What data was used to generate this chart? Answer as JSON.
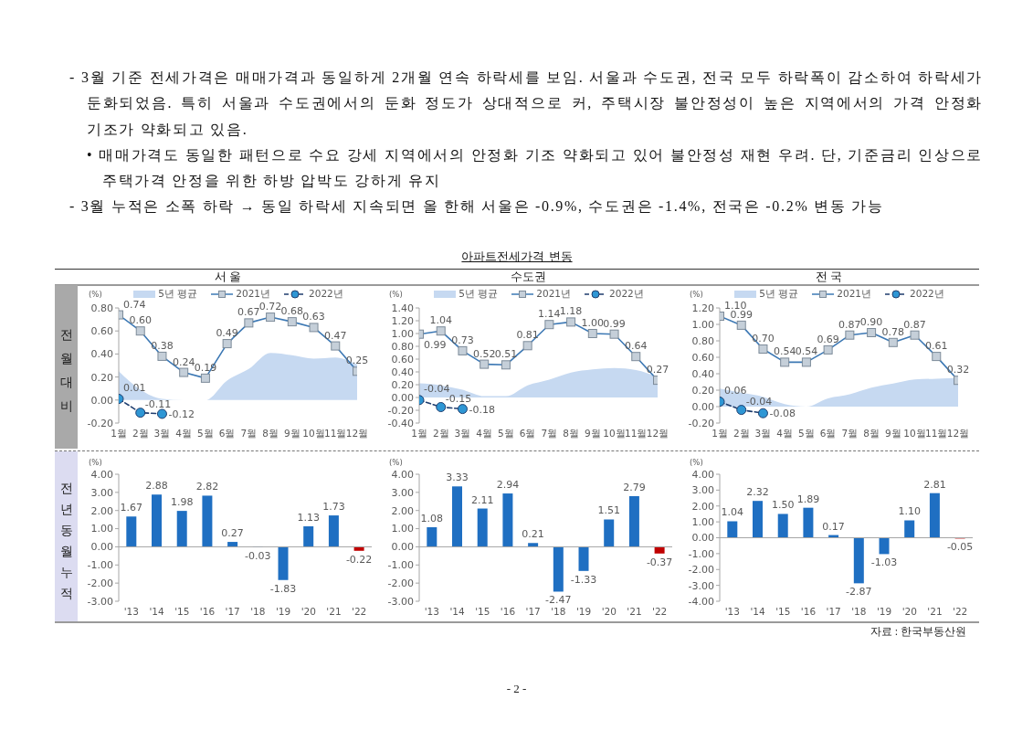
{
  "chart_data": [
    {
      "type": "line",
      "title": "서 울",
      "ylabel": "(%)",
      "annotations": [
        "- 3월 기준 전세가격은 매매가격과 동일하게 2개월 연속 하락세를 보임. 서울과 수도권, 전국 모두 하락폭이 감소하여 하락세가 둔화되었음. 특히 서울과 수도권에서의 둔화 정도가 상대적으로 커, 주택시장 불안정성이 높은 지역에서의 가격 안정화 기조가 약화되고 있음.",
        "• 매매가격도 동일한 패턴으로 수요 강세 지역에서의 안정화 기조 약화되고 있어 불안정성 재현 우려. 단, 기준금리 인상으로 주택가격 안정을 위한 하방 압박도 강하게 유지",
        "- 3월 누적은 소폭 하락 → 동일 하락세 지속되면 올 한해 서울은 -0.9%, 수도권은 -1.4%, 전국은 -0.2% 변동 가능",
        "아파트전세가격 변동",
        "전월대비"
      ],
      "categories": [
        "1월",
        "2월",
        "3월",
        "4월",
        "5월",
        "6월",
        "7월",
        "8월",
        "9월",
        "10월",
        "11월",
        "12월"
      ],
      "series": [
        {
          "name": "5년 평균",
          "type": "area",
          "color": "#c6d9f1",
          "values": [
            0.25,
            0.09,
            0.01,
            0,
            0,
            0.17,
            0.27,
            0.41,
            0.39,
            0.36,
            0.37,
            0.31
          ]
        },
        {
          "name": "2021년",
          "type": "line",
          "color": "#3c78b4",
          "marker": "square",
          "line_style": "solid",
          "values": [
            0.74,
            0.6,
            0.38,
            0.24,
            0.19,
            0.49,
            0.67,
            0.72,
            0.68,
            0.63,
            0.47,
            0.25
          ],
          "value_labels": [
            "0.74",
            "0.60",
            "0.38",
            "0.24",
            "0.19",
            "0.49",
            "0.67",
            "0.72",
            "0.68",
            "0.63",
            "0.47",
            "0.25"
          ]
        },
        {
          "name": "2022년",
          "type": "line",
          "color": "#1f3d6e",
          "marker": "circle",
          "line_style": "dashed",
          "values": [
            0.01,
            -0.11,
            -0.12,
            null,
            null,
            null,
            null,
            null,
            null,
            null,
            null,
            null
          ],
          "value_labels": [
            "0.01",
            "-0.11",
            "-0.12",
            null,
            null,
            null,
            null,
            null,
            null,
            null,
            null,
            null
          ]
        }
      ],
      "ylim": [
        -0.2,
        0.8
      ],
      "yticks": [
        {
          "value": -0.2,
          "label": "-0.20"
        },
        {
          "value": 0,
          "label": "0.00"
        },
        {
          "value": 0.2,
          "label": "0.20"
        },
        {
          "value": 0.4,
          "label": "0.40"
        },
        {
          "value": 0.6,
          "label": "0.60"
        },
        {
          "value": 0.8,
          "label": "0.80"
        }
      ],
      "legend": "top"
    },
    {
      "type": "line",
      "title": "수도권",
      "ylabel": "(%)",
      "categories": [
        "1월",
        "2월",
        "3월",
        "4월",
        "5월",
        "6월",
        "7월",
        "8월",
        "9월",
        "10월",
        "11월",
        "12월"
      ],
      "series": [
        {
          "name": "5년 평균",
          "type": "area",
          "color": "#c6d9f1",
          "values": [
            0.22,
            0.19,
            0.12,
            0.02,
            0.02,
            0.19,
            0.28,
            0.39,
            0.44,
            0.46,
            0.43,
            0.32
          ]
        },
        {
          "name": "2021년",
          "type": "line",
          "color": "#3c78b4",
          "marker": "square",
          "line_style": "solid",
          "values": [
            0.99,
            1.04,
            0.73,
            0.52,
            0.51,
            0.81,
            1.14,
            1.18,
            1.0,
            0.99,
            0.64,
            0.27
          ],
          "value_labels": [
            "0.99",
            "1.04",
            "0.73",
            "0.52",
            "0.51",
            "0.81",
            "1.14",
            "1.18",
            "1.00",
            "0.99",
            "0.64",
            "0.27"
          ]
        },
        {
          "name": "2022년",
          "type": "line",
          "color": "#1f3d6e",
          "marker": "circle",
          "line_style": "dashed",
          "values": [
            -0.04,
            -0.15,
            -0.18,
            null,
            null,
            null,
            null,
            null,
            null,
            null,
            null,
            null
          ],
          "value_labels": [
            "-0.04",
            "-0.15",
            "-0.18",
            null,
            null,
            null,
            null,
            null,
            null,
            null,
            null,
            null
          ]
        }
      ],
      "ylim": [
        -0.4,
        1.4
      ],
      "yticks": [
        {
          "value": -0.4,
          "label": "-0.40"
        },
        {
          "value": -0.2,
          "label": "-0.20"
        },
        {
          "value": 0,
          "label": "0.00"
        },
        {
          "value": 0.2,
          "label": "0.20"
        },
        {
          "value": 0.4,
          "label": "0.40"
        },
        {
          "value": 0.6,
          "label": "0.60"
        },
        {
          "value": 0.8,
          "label": "0.80"
        },
        {
          "value": 1.0,
          "label": "1.00"
        },
        {
          "value": 1.2,
          "label": "1.20"
        },
        {
          "value": 1.4,
          "label": "1.40"
        }
      ],
      "legend": "top"
    },
    {
      "type": "line",
      "title": "전 국",
      "ylabel": "(%)",
      "categories": [
        "1월",
        "2월",
        "3월",
        "4월",
        "5월",
        "6월",
        "7월",
        "8월",
        "9월",
        "10월",
        "11월",
        "12월"
      ],
      "series": [
        {
          "name": "5년 평균",
          "type": "area",
          "color": "#c6d9f1",
          "values": [
            0.22,
            0.17,
            0.12,
            0.03,
            0,
            0.1,
            0.15,
            0.23,
            0.28,
            0.33,
            0.34,
            0.35
          ]
        },
        {
          "name": "2021년",
          "type": "line",
          "color": "#3c78b4",
          "marker": "square",
          "line_style": "solid",
          "values": [
            1.1,
            0.99,
            0.7,
            0.54,
            0.54,
            0.69,
            0.87,
            0.9,
            0.78,
            0.87,
            0.61,
            0.32
          ],
          "value_labels": [
            "1.10",
            "0.99",
            "0.70",
            "0.54",
            "0.54",
            "0.69",
            "0.87",
            "0.90",
            "0.78",
            "0.87",
            "0.61",
            "0.32"
          ]
        },
        {
          "name": "2022년",
          "type": "line",
          "color": "#1f3d6e",
          "marker": "circle",
          "line_style": "dashed",
          "values": [
            0.06,
            -0.04,
            -0.08,
            null,
            null,
            null,
            null,
            null,
            null,
            null,
            null,
            null
          ],
          "value_labels": [
            "0.06",
            "-0.04",
            "-0.08",
            null,
            null,
            null,
            null,
            null,
            null,
            null,
            null,
            null
          ]
        }
      ],
      "ylim": [
        -0.2,
        1.2
      ],
      "yticks": [
        {
          "value": -0.2,
          "label": "-0.20"
        },
        {
          "value": 0,
          "label": "0.00"
        },
        {
          "value": 0.2,
          "label": "0.20"
        },
        {
          "value": 0.4,
          "label": "0.40"
        },
        {
          "value": 0.6,
          "label": "0.60"
        },
        {
          "value": 0.8,
          "label": "0.80"
        },
        {
          "value": 1.0,
          "label": "1.00"
        },
        {
          "value": 1.2,
          "label": "1.20"
        }
      ],
      "legend": "top"
    },
    {
      "type": "bar",
      "ylabel": "(%)",
      "annotations": [
        "전년동월누적"
      ],
      "categories": [
        "'13",
        "'14",
        "'15",
        "'16",
        "'17",
        "'18",
        "'19",
        "'20",
        "'21",
        "'22"
      ],
      "values": [
        1.67,
        2.88,
        1.98,
        2.82,
        0.27,
        -0.03,
        -1.83,
        1.13,
        1.73,
        -0.22
      ],
      "colors": [
        "#1f6fc2",
        "#1f6fc2",
        "#1f6fc2",
        "#1f6fc2",
        "#1f6fc2",
        "#1f6fc2",
        "#1f6fc2",
        "#1f6fc2",
        "#1f6fc2",
        "#c00000"
      ],
      "value_labels": [
        "1.67",
        "2.88",
        "1.98",
        "2.82",
        "0.27",
        "-0.03",
        "-1.83",
        "1.13",
        "1.73",
        "-0.22"
      ],
      "ylim": [
        -3,
        4
      ],
      "yticks": [
        {
          "value": -3,
          "label": "-3.00"
        },
        {
          "value": -2,
          "label": "-2.00"
        },
        {
          "value": -1,
          "label": "-1.00"
        },
        {
          "value": 0,
          "label": "0.00"
        },
        {
          "value": 1,
          "label": "1.00"
        },
        {
          "value": 2,
          "label": "2.00"
        },
        {
          "value": 3,
          "label": "3.00"
        },
        {
          "value": 4,
          "label": "4.00"
        }
      ]
    },
    {
      "type": "bar",
      "ylabel": "(%)",
      "categories": [
        "'13",
        "'14",
        "'15",
        "'16",
        "'17",
        "'18",
        "'19",
        "'20",
        "'21",
        "'22"
      ],
      "values": [
        1.08,
        3.33,
        2.11,
        2.94,
        0.21,
        -2.47,
        -1.33,
        1.51,
        2.79,
        -0.37
      ],
      "colors": [
        "#1f6fc2",
        "#1f6fc2",
        "#1f6fc2",
        "#1f6fc2",
        "#1f6fc2",
        "#1f6fc2",
        "#1f6fc2",
        "#1f6fc2",
        "#1f6fc2",
        "#c00000"
      ],
      "value_labels": [
        "1.08",
        "3.33",
        "2.11",
        "2.94",
        "0.21",
        "-2.47",
        "-1.33",
        "1.51",
        "2.79",
        "-0.37"
      ],
      "ylim": [
        -3,
        4
      ],
      "yticks": [
        {
          "value": -3,
          "label": "-3.00"
        },
        {
          "value": -2,
          "label": "-2.00"
        },
        {
          "value": -1,
          "label": "-1.00"
        },
        {
          "value": 0,
          "label": "0.00"
        },
        {
          "value": 1,
          "label": "1.00"
        },
        {
          "value": 2,
          "label": "2.00"
        },
        {
          "value": 3,
          "label": "3.00"
        },
        {
          "value": 4,
          "label": "4.00"
        }
      ]
    },
    {
      "type": "bar",
      "ylabel": "(%)",
      "annotations": [
        "자료 : 한국부동산원",
        "- 2 -"
      ],
      "categories": [
        "'13",
        "'14",
        "'15",
        "'16",
        "'17",
        "'18",
        "'19",
        "'20",
        "'21",
        "'22"
      ],
      "values": [
        1.04,
        2.32,
        1.5,
        1.89,
        0.17,
        -2.87,
        -1.03,
        1.1,
        2.81,
        -0.05
      ],
      "colors": [
        "#1f6fc2",
        "#1f6fc2",
        "#1f6fc2",
        "#1f6fc2",
        "#1f6fc2",
        "#1f6fc2",
        "#1f6fc2",
        "#1f6fc2",
        "#1f6fc2",
        "#c00000"
      ],
      "value_labels": [
        "1.04",
        "2.32",
        "1.50",
        "1.89",
        "0.17",
        "-2.87",
        "-1.03",
        "1.10",
        "2.81",
        "-0.05"
      ],
      "ylim": [
        -4,
        4
      ],
      "yticks": [
        {
          "value": -4,
          "label": "-4.00"
        },
        {
          "value": -3,
          "label": "-3.00"
        },
        {
          "value": -2,
          "label": "-2.00"
        },
        {
          "value": -1,
          "label": "-1.00"
        },
        {
          "value": 0,
          "label": "0.00"
        },
        {
          "value": 1,
          "label": "1.00"
        },
        {
          "value": 2,
          "label": "2.00"
        },
        {
          "value": 3,
          "label": "3.00"
        },
        {
          "value": 4,
          "label": "4.00"
        }
      ]
    }
  ]
}
